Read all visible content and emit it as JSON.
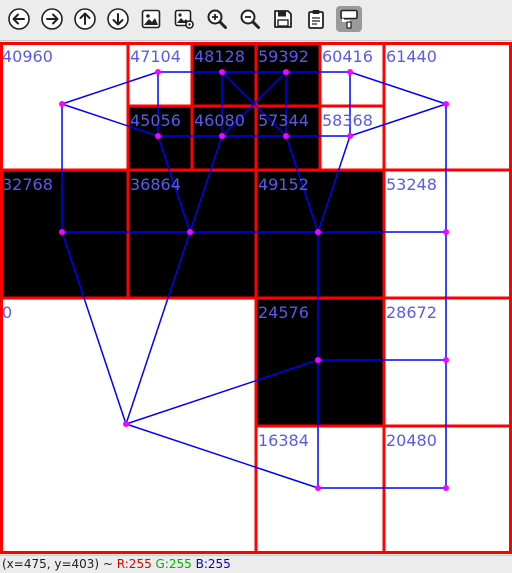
{
  "toolbar": {
    "buttons": [
      {
        "name": "back-button",
        "icon": "arrow-left-icon"
      },
      {
        "name": "forward-button",
        "icon": "arrow-right-icon"
      },
      {
        "name": "up-button",
        "icon": "arrow-up-icon"
      },
      {
        "name": "down-button",
        "icon": "arrow-down-icon"
      },
      {
        "name": "image-button",
        "icon": "image-icon"
      },
      {
        "name": "image-settings-button",
        "icon": "image-gear-icon"
      },
      {
        "name": "zoom-in-button",
        "icon": "zoom-in-icon"
      },
      {
        "name": "zoom-out-button",
        "icon": "zoom-out-icon"
      },
      {
        "name": "save-button",
        "icon": "floppy-disk-icon"
      },
      {
        "name": "clipboard-button",
        "icon": "clipboard-icon"
      },
      {
        "name": "properties-button",
        "icon": "brush-icon"
      }
    ]
  },
  "canvas": {
    "cell_labels": {
      "c40960": "40960",
      "c47104": "47104",
      "c48128": "48128",
      "c59392": "59392",
      "c60416": "60416",
      "c61440": "61440",
      "c45056": "45056",
      "c46080": "46080",
      "c57344": "57344",
      "c58368": "58368",
      "c32768": "32768",
      "c36864": "36864",
      "c49152": "49152",
      "c53248": "53248",
      "c0": "0",
      "c24576": "24576",
      "c28672": "28672",
      "c16384": "16384",
      "c20480": "20480"
    },
    "colors": {
      "grid_line": "#ff0000",
      "edge": "#0000ff",
      "node": "#ff00ff",
      "label": "#5a5aee",
      "filled_cell": "#000000",
      "empty_cell": "#ffffff"
    }
  },
  "status": {
    "coords": "(x=475, y=403) ~ ",
    "r": "R:255",
    "g": "G:255",
    "b": "B:255"
  }
}
